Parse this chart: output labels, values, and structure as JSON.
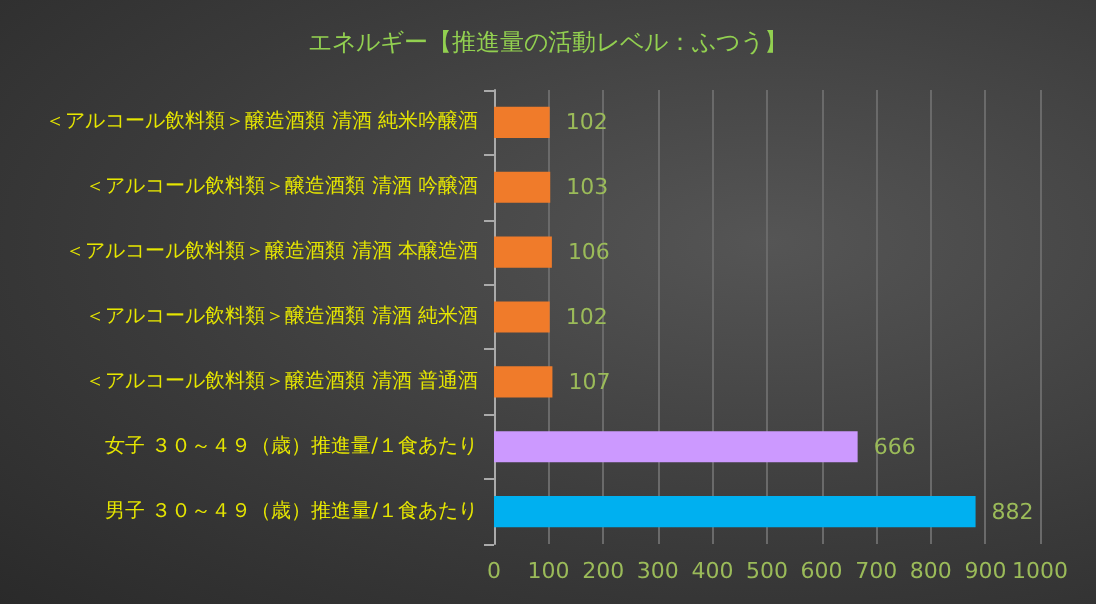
{
  "chart_data": {
    "type": "bar",
    "orientation": "horizontal",
    "title": "エネルギー【推進量の活動レベル：ふつう】",
    "categories": [
      "＜アルコール飲料類＞醸造酒類 清酒 純米吟醸酒",
      "＜アルコール飲料類＞醸造酒類 清酒 吟醸酒",
      "＜アルコール飲料類＞醸造酒類 清酒 本醸造酒",
      "＜アルコール飲料類＞醸造酒類 清酒 純米酒",
      "＜アルコール飲料類＞醸造酒類 清酒 普通酒",
      "女子 ３０～４９（歳）推進量/１食あたり",
      "男子 ３０～４９（歳）推進量/１食あたり"
    ],
    "values": [
      102,
      103,
      106,
      102,
      107,
      666,
      882
    ],
    "colors": [
      "#f07b2a",
      "#f07b2a",
      "#f07b2a",
      "#f07b2a",
      "#f07b2a",
      "#cc99ff",
      "#00b0f0"
    ],
    "xlim": [
      0,
      1000
    ],
    "xticks": [
      0,
      100,
      200,
      300,
      400,
      500,
      600,
      700,
      800,
      900,
      1000
    ],
    "grid": "x",
    "data_labels": true
  }
}
